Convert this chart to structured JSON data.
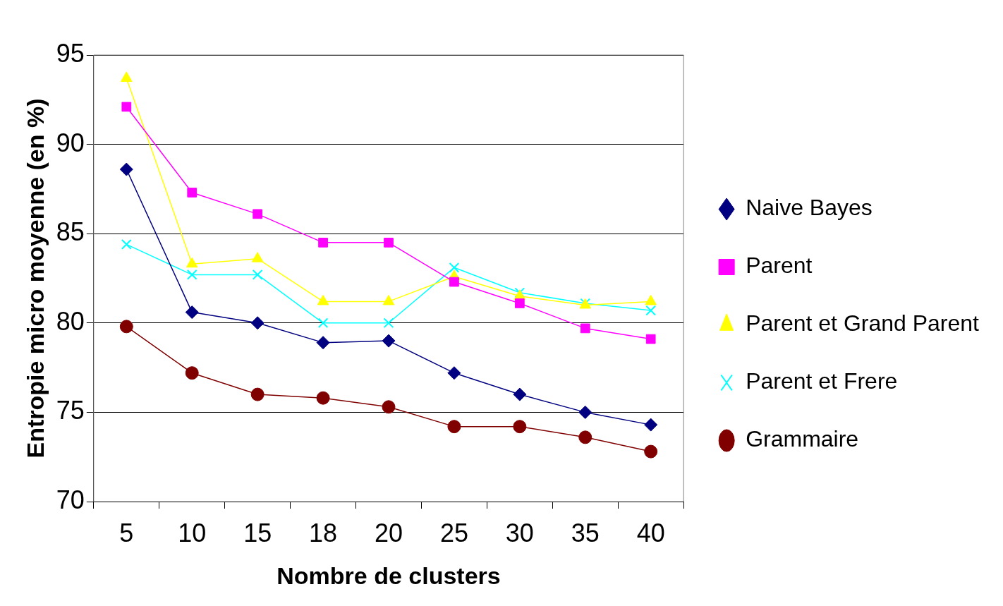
{
  "chart_data": {
    "type": "line",
    "xlabel": "Nombre de clusters",
    "ylabel": "Entropie micro moyenne (en %)",
    "categories": [
      "5",
      "10",
      "15",
      "18",
      "20",
      "25",
      "30",
      "35",
      "40"
    ],
    "ylim": [
      70,
      95
    ],
    "yticks": [
      70,
      75,
      80,
      85,
      90,
      95
    ],
    "grid": "y",
    "legend": "right",
    "series": [
      {
        "name": "Naive Bayes",
        "color": "#000080",
        "marker": "diamond",
        "values": [
          88.6,
          80.6,
          80.0,
          78.9,
          79.0,
          77.2,
          76.0,
          75.0,
          74.3
        ]
      },
      {
        "name": "Parent",
        "color": "#ff00ff",
        "marker": "square",
        "values": [
          92.1,
          87.3,
          86.1,
          84.5,
          84.5,
          82.3,
          81.1,
          79.7,
          79.1
        ]
      },
      {
        "name": "Parent et Grand Parent",
        "color": "#ffff00",
        "marker": "triangle",
        "values": [
          93.7,
          83.3,
          83.6,
          81.2,
          81.2,
          82.6,
          81.5,
          81.0,
          81.2
        ]
      },
      {
        "name": "Parent et Frere",
        "color": "#00ffff",
        "marker": "cross",
        "values": [
          84.4,
          82.7,
          82.7,
          80.0,
          80.0,
          83.1,
          81.7,
          81.1,
          80.7
        ]
      },
      {
        "name": "Grammaire",
        "color": "#800000",
        "marker": "circle",
        "values": [
          79.8,
          77.2,
          76.0,
          75.8,
          75.3,
          74.2,
          74.2,
          73.6,
          72.8
        ]
      }
    ]
  }
}
